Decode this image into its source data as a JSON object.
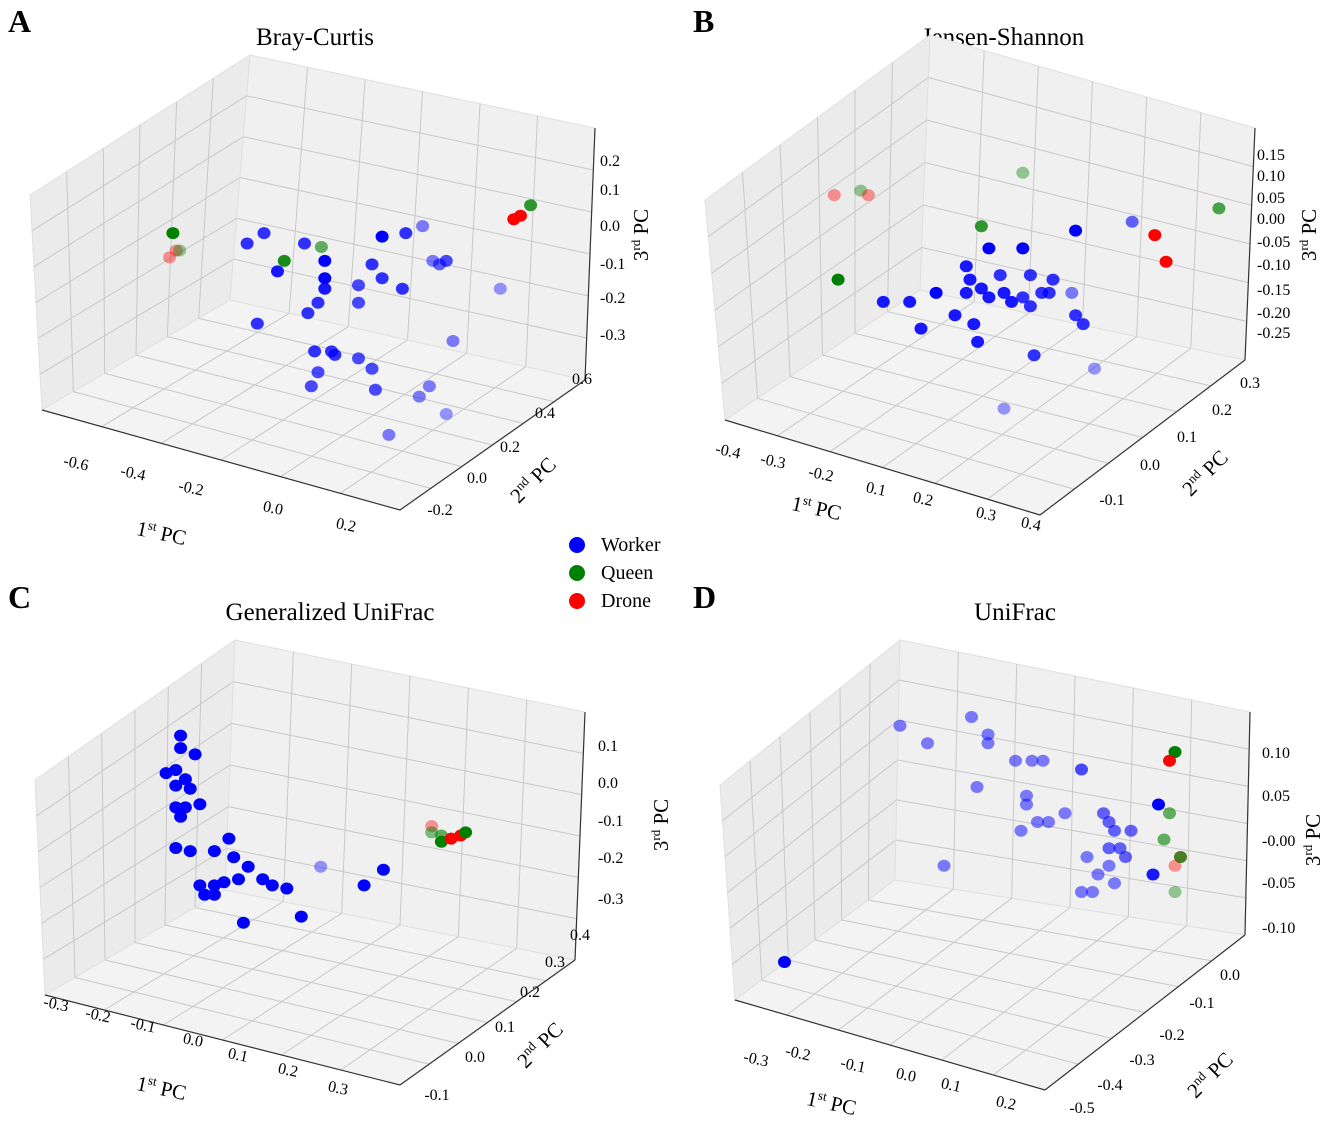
{
  "legend": {
    "items": [
      {
        "key": "W",
        "label": "Worker",
        "color": "#0000ff"
      },
      {
        "key": "Q",
        "label": "Queen",
        "color": "#008000"
      },
      {
        "key": "D",
        "label": "Drone",
        "color": "#ff0000"
      }
    ]
  },
  "chart_data": [
    {
      "type": "scatter3d",
      "panel": "A",
      "title": "Bray-Curtis",
      "xlabel": {
        "num": "1",
        "sup": "st",
        "rest": " PC"
      },
      "ylabel": {
        "num": "2",
        "sup": "nd",
        "rest": " PC"
      },
      "zlabel": {
        "num": "3",
        "sup": "rd",
        "rest": " PC"
      },
      "xticks": [
        "-0.6",
        "-0.4",
        "-0.2",
        "0.0",
        "0.2"
      ],
      "yticks": [
        "-0.2",
        "0.0",
        "0.2",
        "0.4",
        "0.6"
      ],
      "zticks": [
        "0.2",
        "0.1",
        "0.0",
        "-0.1",
        "-0.2",
        "-0.3"
      ],
      "point_fields": [
        "pc1",
        "pc3",
        "group",
        "opacity"
      ],
      "points": [
        [
          -0.31,
          -0.01,
          "Q",
          1
        ],
        [
          -0.3,
          -0.06,
          "D",
          0.4
        ],
        [
          -0.29,
          -0.06,
          "Q",
          0.4
        ],
        [
          -0.32,
          -0.08,
          "D",
          0.4
        ],
        [
          0.75,
          0.07,
          "Q",
          0.8
        ],
        [
          0.72,
          0.04,
          "D",
          1
        ],
        [
          0.7,
          0.03,
          "D",
          1
        ],
        [
          0.02,
          -0.09,
          "Q",
          0.9
        ],
        [
          0.13,
          -0.05,
          "Q",
          0.6
        ],
        [
          -0.04,
          -0.01,
          "W",
          0.8
        ],
        [
          -0.09,
          -0.04,
          "W",
          0.8
        ],
        [
          0.0,
          -0.12,
          "W",
          0.9
        ],
        [
          -0.06,
          -0.27,
          "W",
          0.8
        ],
        [
          0.08,
          -0.04,
          "W",
          0.8
        ],
        [
          0.14,
          -0.09,
          "W",
          1
        ],
        [
          0.14,
          -0.14,
          "W",
          1
        ],
        [
          0.14,
          -0.17,
          "W",
          0.9
        ],
        [
          0.12,
          -0.21,
          "W",
          0.8
        ],
        [
          0.09,
          -0.24,
          "W",
          0.8
        ],
        [
          0.31,
          -0.02,
          "W",
          1
        ],
        [
          0.38,
          -0.01,
          "W",
          0.8
        ],
        [
          0.43,
          0.01,
          "W",
          0.5
        ],
        [
          0.28,
          -0.1,
          "W",
          0.8
        ],
        [
          0.31,
          -0.14,
          "W",
          0.8
        ],
        [
          0.37,
          -0.17,
          "W",
          0.8
        ],
        [
          0.24,
          -0.16,
          "W",
          0.7
        ],
        [
          0.24,
          -0.21,
          "W",
          0.7
        ],
        [
          0.16,
          -0.35,
          "W",
          0.8
        ],
        [
          0.17,
          -0.36,
          "W",
          0.8
        ],
        [
          0.11,
          -0.35,
          "W",
          0.8
        ],
        [
          0.24,
          -0.37,
          "W",
          0.7
        ],
        [
          0.12,
          -0.41,
          "W",
          0.7
        ],
        [
          0.1,
          -0.45,
          "W",
          0.7
        ],
        [
          0.28,
          -0.4,
          "W",
          0.7
        ],
        [
          0.29,
          -0.46,
          "W",
          0.7
        ],
        [
          0.46,
          -0.09,
          "W",
          0.5
        ],
        [
          0.48,
          -0.1,
          "W",
          0.6
        ],
        [
          0.5,
          -0.09,
          "W",
          0.7
        ],
        [
          0.66,
          -0.17,
          "W",
          0.4
        ],
        [
          0.52,
          -0.32,
          "W",
          0.5
        ],
        [
          0.45,
          -0.45,
          "W",
          0.5
        ],
        [
          0.42,
          -0.48,
          "W",
          0.5
        ],
        [
          0.5,
          -0.53,
          "W",
          0.4
        ],
        [
          0.33,
          -0.59,
          "W",
          0.5
        ]
      ]
    },
    {
      "type": "scatter3d",
      "panel": "B",
      "title": "Jensen-Shannon",
      "xlabel": {
        "num": "1",
        "sup": "st",
        "rest": " PC"
      },
      "ylabel": {
        "num": "2",
        "sup": "nd",
        "rest": " PC"
      },
      "zlabel": {
        "num": "3",
        "sup": "rd",
        "rest": " PC"
      },
      "xticks": [
        "-0.4",
        "-0.3",
        "-0.2",
        "0.1",
        "0.2",
        "0.3",
        "0.4"
      ],
      "yticks": [
        "-0.1",
        "0.0",
        "0.1",
        "0.2",
        "0.3"
      ],
      "zticks": [
        "0.15",
        "0.10",
        "0.05",
        "0.00",
        "-0.05",
        "-0.10",
        "-0.15",
        "-0.20",
        "-0.25"
      ],
      "point_fields": [
        "pc1",
        "pc3",
        "group",
        "opacity"
      ],
      "points": [
        [
          -0.11,
          0.06,
          "D",
          0.4
        ],
        [
          -0.04,
          0.07,
          "Q",
          0.4
        ],
        [
          -0.02,
          0.06,
          "D",
          0.4
        ],
        [
          -0.1,
          -0.13,
          "Q",
          1
        ],
        [
          0.39,
          0.11,
          "Q",
          0.4
        ],
        [
          0.28,
          -0.01,
          "Q",
          0.8
        ],
        [
          0.91,
          0.03,
          "Q",
          0.7
        ],
        [
          0.68,
          0.0,
          "W",
          0.6
        ],
        [
          0.74,
          -0.03,
          "D",
          1
        ],
        [
          0.77,
          -0.09,
          "D",
          1
        ],
        [
          0.53,
          -0.02,
          "W",
          1
        ],
        [
          0.3,
          -0.06,
          "W",
          1
        ],
        [
          0.39,
          -0.06,
          "W",
          1
        ],
        [
          0.24,
          -0.1,
          "W",
          0.9
        ],
        [
          0.16,
          -0.16,
          "W",
          1
        ],
        [
          0.09,
          -0.18,
          "W",
          0.9
        ],
        [
          0.25,
          -0.13,
          "W",
          0.9
        ],
        [
          0.28,
          -0.15,
          "W",
          0.9
        ],
        [
          0.33,
          -0.12,
          "W",
          0.8
        ],
        [
          0.41,
          -0.12,
          "W",
          0.8
        ],
        [
          0.47,
          -0.13,
          "W",
          0.8
        ],
        [
          0.44,
          -0.16,
          "W",
          0.8
        ],
        [
          0.46,
          -0.16,
          "W",
          0.8
        ],
        [
          0.52,
          -0.16,
          "W",
          0.5
        ],
        [
          0.34,
          -0.16,
          "W",
          0.9
        ],
        [
          0.36,
          -0.18,
          "W",
          0.9
        ],
        [
          0.39,
          -0.17,
          "W",
          0.8
        ],
        [
          0.41,
          -0.19,
          "W",
          0.8
        ],
        [
          0.3,
          -0.17,
          "W",
          0.9
        ],
        [
          0.24,
          -0.16,
          "W",
          0.9
        ],
        [
          0.21,
          -0.21,
          "W",
          0.9
        ],
        [
          0.26,
          -0.23,
          "W",
          0.9
        ],
        [
          0.27,
          -0.27,
          "W",
          0.9
        ],
        [
          0.12,
          -0.24,
          "W",
          0.9
        ],
        [
          0.42,
          -0.3,
          "W",
          0.8
        ],
        [
          0.53,
          -0.21,
          "W",
          0.8
        ],
        [
          0.55,
          -0.23,
          "W",
          0.8
        ],
        [
          0.58,
          -0.33,
          "W",
          0.4
        ],
        [
          0.34,
          -0.42,
          "W",
          0.4
        ],
        [
          0.02,
          -0.18,
          "W",
          0.9
        ]
      ]
    },
    {
      "type": "scatter3d",
      "panel": "C",
      "title": "Generalized UniFrac",
      "xlabel": {
        "num": "1",
        "sup": "st",
        "rest": " PC"
      },
      "ylabel": {
        "num": "2",
        "sup": "nd",
        "rest": " PC"
      },
      "zlabel": {
        "num": "3",
        "sup": "rd",
        "rest": " PC"
      },
      "xticks": [
        "-0.3",
        "-0.2",
        "-0.1",
        "0.0",
        "0.1",
        "0.2",
        "0.3"
      ],
      "yticks": [
        "-0.1",
        "0.0",
        "0.1",
        "0.2",
        "0.3",
        "0.4"
      ],
      "zticks": [
        "0.1",
        "0.0",
        "-0.1",
        "-0.2",
        "-0.3"
      ],
      "point_fields": [
        "pc1",
        "pc3",
        "group",
        "opacity"
      ],
      "points": [
        [
          -0.04,
          0.13,
          "W",
          1
        ],
        [
          -0.04,
          0.09,
          "W",
          1
        ],
        [
          -0.01,
          0.07,
          "W",
          1
        ],
        [
          -0.07,
          0.01,
          "W",
          1
        ],
        [
          -0.05,
          0.02,
          "W",
          1
        ],
        [
          -0.03,
          -0.01,
          "W",
          1
        ],
        [
          -0.05,
          -0.03,
          "W",
          1
        ],
        [
          -0.02,
          -0.04,
          "W",
          1
        ],
        [
          0.0,
          -0.09,
          "W",
          1
        ],
        [
          -0.05,
          -0.1,
          "W",
          1
        ],
        [
          -0.03,
          -0.1,
          "W",
          1
        ],
        [
          -0.04,
          -0.13,
          "W",
          1
        ],
        [
          -0.05,
          -0.23,
          "W",
          1
        ],
        [
          -0.02,
          -0.24,
          "W",
          1
        ],
        [
          0.03,
          -0.24,
          "W",
          1
        ],
        [
          0.06,
          -0.2,
          "W",
          1
        ],
        [
          0.07,
          -0.26,
          "W",
          1
        ],
        [
          0.0,
          -0.35,
          "W",
          1
        ],
        [
          0.03,
          -0.35,
          "W",
          1
        ],
        [
          0.05,
          -0.34,
          "W",
          1
        ],
        [
          0.08,
          -0.33,
          "W",
          1
        ],
        [
          0.01,
          -0.38,
          "W",
          1
        ],
        [
          0.03,
          -0.38,
          "W",
          1
        ],
        [
          0.09,
          -0.47,
          "W",
          1
        ],
        [
          0.1,
          -0.29,
          "W",
          1
        ],
        [
          0.13,
          -0.33,
          "W",
          1
        ],
        [
          0.15,
          -0.35,
          "W",
          1
        ],
        [
          0.18,
          -0.36,
          "W",
          1
        ],
        [
          0.21,
          -0.45,
          "W",
          1
        ],
        [
          0.25,
          -0.29,
          "W",
          0.4
        ],
        [
          0.34,
          -0.35,
          "W",
          1
        ],
        [
          0.38,
          -0.3,
          "W",
          1
        ],
        [
          0.48,
          -0.16,
          "D",
          0.4
        ],
        [
          0.48,
          -0.18,
          "Q",
          0.5
        ],
        [
          0.5,
          -0.19,
          "Q",
          0.6
        ],
        [
          0.5,
          -0.21,
          "Q",
          1
        ],
        [
          0.52,
          -0.2,
          "D",
          1
        ],
        [
          0.54,
          -0.19,
          "D",
          1
        ],
        [
          0.55,
          -0.18,
          "Q",
          1
        ]
      ]
    },
    {
      "type": "scatter3d",
      "panel": "D",
      "title": "UniFrac",
      "xlabel": {
        "num": "1",
        "sup": "st",
        "rest": " PC"
      },
      "ylabel": {
        "num": "2",
        "sup": "nd",
        "rest": " PC"
      },
      "zlabel": {
        "num": "3",
        "sup": "rd",
        "rest": " PC"
      },
      "xticks": [
        "-0.3",
        "-0.2",
        "-0.1",
        "0.0",
        "0.1",
        "0.2"
      ],
      "yticks": [
        "-0.5",
        "-0.4",
        "-0.3",
        "-0.2",
        "-0.1",
        "0.0"
      ],
      "zticks": [
        "0.10",
        "0.05",
        "-0.00",
        "-0.05",
        "-0.10"
      ],
      "point_fields": [
        "pc1",
        "pc3",
        "group",
        "opacity"
      ],
      "points": [
        [
          -0.21,
          -0.14,
          "W",
          1
        ],
        [
          0.0,
          0.13,
          "W",
          0.5
        ],
        [
          0.05,
          0.11,
          "W",
          0.5
        ],
        [
          0.13,
          0.14,
          "W",
          0.5
        ],
        [
          0.16,
          0.12,
          "W",
          0.5
        ],
        [
          0.16,
          0.11,
          "W",
          0.5
        ],
        [
          0.21,
          0.09,
          "W",
          0.5
        ],
        [
          0.24,
          0.09,
          "W",
          0.5
        ],
        [
          0.26,
          0.09,
          "W",
          0.5
        ],
        [
          0.14,
          0.06,
          "W",
          0.5
        ],
        [
          0.23,
          0.05,
          "W",
          0.5
        ],
        [
          0.23,
          0.04,
          "W",
          0.5
        ],
        [
          0.25,
          0.02,
          "W",
          0.5
        ],
        [
          0.27,
          0.02,
          "W",
          0.5
        ],
        [
          0.22,
          0.01,
          "W",
          0.5
        ],
        [
          0.3,
          0.03,
          "W",
          0.5
        ],
        [
          0.33,
          0.08,
          "W",
          0.7
        ],
        [
          0.37,
          0.03,
          "W",
          0.6
        ],
        [
          0.38,
          0.02,
          "W",
          0.6
        ],
        [
          0.39,
          0.01,
          "W",
          0.6
        ],
        [
          0.42,
          0.01,
          "W",
          0.6
        ],
        [
          0.38,
          -0.01,
          "W",
          0.6
        ],
        [
          0.41,
          -0.02,
          "W",
          0.6
        ],
        [
          0.34,
          -0.02,
          "W",
          0.5
        ],
        [
          0.36,
          -0.04,
          "W",
          0.5
        ],
        [
          0.38,
          -0.03,
          "W",
          0.5
        ],
        [
          0.39,
          -0.05,
          "W",
          0.5
        ],
        [
          0.33,
          -0.06,
          "W",
          0.5
        ],
        [
          0.35,
          -0.06,
          "W",
          0.5
        ],
        [
          0.08,
          -0.03,
          "W",
          0.5
        ],
        [
          0.4,
          -0.01,
          "W",
          0.6
        ],
        [
          0.5,
          0.1,
          "Q",
          1
        ],
        [
          0.49,
          0.09,
          "D",
          1
        ],
        [
          0.47,
          0.04,
          "W",
          1
        ],
        [
          0.49,
          0.03,
          "Q",
          0.6
        ],
        [
          0.48,
          0.0,
          "Q",
          0.6
        ],
        [
          0.51,
          -0.02,
          "Q",
          0.7
        ],
        [
          0.51,
          -0.02,
          "D",
          0.5
        ],
        [
          0.5,
          -0.03,
          "D",
          0.4
        ],
        [
          0.5,
          -0.06,
          "Q",
          0.4
        ],
        [
          0.46,
          -0.04,
          "W",
          0.9
        ]
      ]
    }
  ]
}
